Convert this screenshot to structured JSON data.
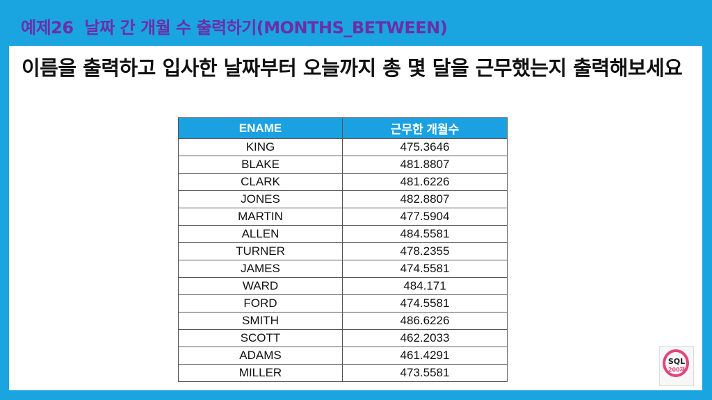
{
  "header": {
    "example_number": "예제26",
    "title": "날짜 간 개월 수 출력하기(MONTHS_BETWEEN)",
    "brand": "SQL200제"
  },
  "instruction": "이름을 출력하고 입사한 날짜부터 오늘까지 총 몇 달을 근무했는지 출력해보세요",
  "table": {
    "columns": [
      "ENAME",
      "근무한 개월수"
    ],
    "rows": [
      [
        "KING",
        "475.3646"
      ],
      [
        "BLAKE",
        "481.8807"
      ],
      [
        "CLARK",
        "481.6226"
      ],
      [
        "JONES",
        "482.8807"
      ],
      [
        "MARTIN",
        "477.5904"
      ],
      [
        "ALLEN",
        "484.5581"
      ],
      [
        "TURNER",
        "478.2355"
      ],
      [
        "JAMES",
        "474.5581"
      ],
      [
        "WARD",
        "484.171"
      ],
      [
        "FORD",
        "474.5581"
      ],
      [
        "SMITH",
        "486.6226"
      ],
      [
        "SCOTT",
        "462.2033"
      ],
      [
        "ADAMS",
        "461.4291"
      ],
      [
        "MILLER",
        "473.5581"
      ]
    ]
  },
  "book_cover": {
    "sql": "SQL",
    "number": "200제"
  },
  "colors": {
    "background": "#1aa5e0",
    "title": "#6b2fa8",
    "table_header": "#1ba1e2"
  }
}
